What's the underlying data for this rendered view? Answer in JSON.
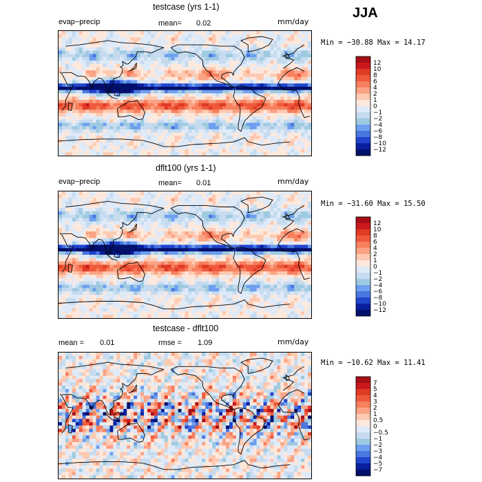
{
  "season": "JJA",
  "panels": [
    {
      "title": "testcase (yrs 1-1)",
      "left_label": "evap−precip",
      "mean_label": "mean=",
      "mean_value": "0.02",
      "units": "mm/day",
      "minmax": "Min = −30.88 Max =  14.17",
      "seed": 1
    },
    {
      "title": "dflt100 (yrs 1-1)",
      "left_label": "evap−precip",
      "mean_label": "mean=",
      "mean_value": "0.01",
      "units": "mm/day",
      "minmax": "Min = −31.60 Max =  15.50",
      "seed": 2
    },
    {
      "title": "testcase - dflt100",
      "left_label": "mean =",
      "left_value": "0.01",
      "mean_label": "rmse =",
      "mean_value": "1.09",
      "units": "mm/day",
      "minmax": "Min = −10.62 Max =  11.41",
      "seed": 3
    }
  ],
  "chart_data": [
    {
      "type": "heatmap",
      "title": "testcase (yrs 1-1)",
      "variable": "evap−precip",
      "units": "mm/day",
      "mean": 0.02,
      "min": -30.88,
      "max": 14.17,
      "levels": [
        "12",
        "10",
        "8",
        "6",
        "4",
        "2",
        "1",
        "0",
        "−1",
        "−2",
        "−4",
        "−6",
        "−8",
        "−10",
        "−12"
      ],
      "colors": [
        "#a50f15",
        "#cb181d",
        "#e03b25",
        "#ef5a3c",
        "#f7805e",
        "#fba385",
        "#fdc9b0",
        "#fde8dc",
        "#dfeaf8",
        "#c6dbef",
        "#9ecae1",
        "#6e9ff0",
        "#4a76e0",
        "#2045cc",
        "#0a1f9e",
        "#03106b"
      ]
    },
    {
      "type": "heatmap",
      "title": "dflt100 (yrs 1-1)",
      "variable": "evap−precip",
      "units": "mm/day",
      "mean": 0.01,
      "min": -31.6,
      "max": 15.5,
      "levels": [
        "12",
        "10",
        "8",
        "6",
        "4",
        "2",
        "1",
        "0",
        "−1",
        "−2",
        "−4",
        "−6",
        "−8",
        "−10",
        "−12"
      ],
      "colors": [
        "#a50f15",
        "#cb181d",
        "#e03b25",
        "#ef5a3c",
        "#f7805e",
        "#fba385",
        "#fdc9b0",
        "#fde8dc",
        "#dfeaf8",
        "#c6dbef",
        "#9ecae1",
        "#6e9ff0",
        "#4a76e0",
        "#2045cc",
        "#0a1f9e",
        "#03106b"
      ]
    },
    {
      "type": "heatmap",
      "title": "testcase - dflt100",
      "units": "mm/day",
      "mean": 0.01,
      "rmse": 1.09,
      "min": -10.62,
      "max": 11.41,
      "levels": [
        "7",
        "5",
        "4",
        "3",
        "2",
        "1",
        "0.5",
        "0",
        "−0.5",
        "−1",
        "−2",
        "−3",
        "−4",
        "−5",
        "−7"
      ],
      "colors": [
        "#a50f15",
        "#cb181d",
        "#e03b25",
        "#ef5a3c",
        "#f7805e",
        "#fba385",
        "#fdc9b0",
        "#fde8dc",
        "#dfeaf8",
        "#c6dbef",
        "#9ecae1",
        "#6e9ff0",
        "#4a76e0",
        "#2045cc",
        "#0a1f9e",
        "#03106b"
      ]
    }
  ]
}
